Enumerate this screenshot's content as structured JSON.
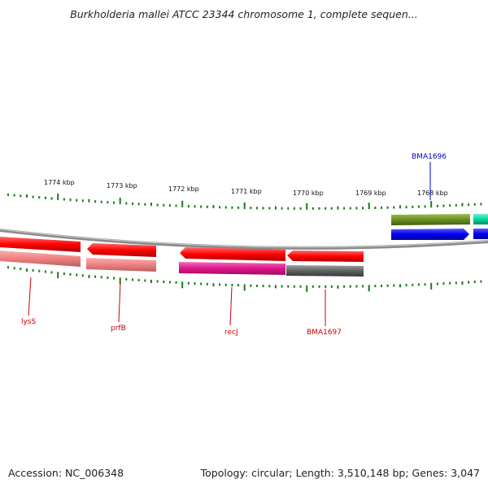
{
  "title": "Burkholderia mallei ATCC 23344 chromosome 1, complete sequen...",
  "footer": {
    "accession": "Accession: NC_006348",
    "summary": "Topology: circular; Length: 3,510,148 bp; Genes: 3,047"
  },
  "scale_labels": [
    "1774 kbp",
    "1773 kbp",
    "1772 kbp",
    "1771 kbp",
    "1770 kbp",
    "1769 kbp",
    "1768 kbp"
  ],
  "gene_labels": {
    "lysS": "lysS",
    "prfB": "prfB",
    "recJ": "recJ",
    "bma1697": "BMA1697",
    "bma1696": "BMA1696"
  },
  "colors": {
    "red_gene": "#ff0000",
    "pink_gene": "#f08080",
    "magenta_gene": "#e0158a",
    "grey_gene": "#606060",
    "olive_gene": "#6b8e23",
    "blue_gene": "#0000ee",
    "teal_gene": "#00d7a0",
    "tick": "#1a7a1a",
    "label_red": "#cc0000",
    "label_blue": "#0000cc"
  }
}
